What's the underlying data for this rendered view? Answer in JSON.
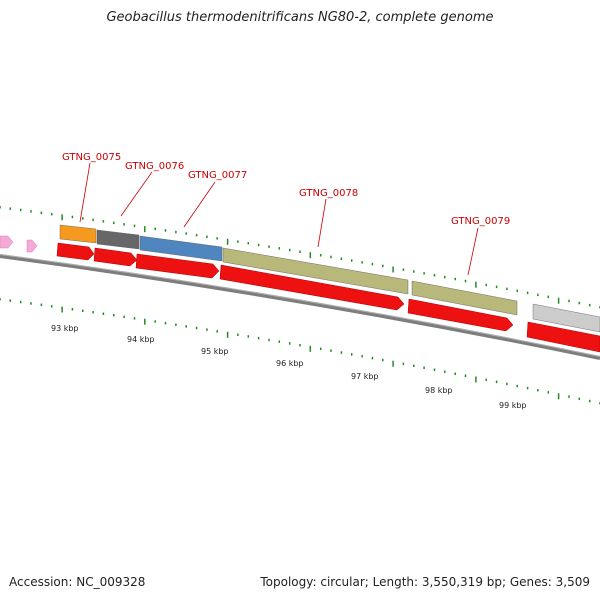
{
  "title": "Geobacillus thermodenitrificans NG80-2, complete genome",
  "footer": {
    "accession": "Accession: NC_009328",
    "summary": "Topology: circular; Length: 3,550,319 bp; Genes: 3,509"
  },
  "colors": {
    "backbone": "#7a7a7a",
    "cds_strand": "#ee1111",
    "gene_label": "#cc0000",
    "tick": "#228b22",
    "pink_feature": "#f4a9d6"
  },
  "genes": [
    {
      "name": "GTNG_0075",
      "color": "#f59a1f"
    },
    {
      "name": "GTNG_0076",
      "color": "#676767"
    },
    {
      "name": "GTNG_0077",
      "color": "#4f86bf"
    },
    {
      "name": "GTNG_0078",
      "color": "#b8b87a"
    },
    {
      "name": "GTNG_0079",
      "color": "#b8b87a"
    },
    {
      "name": "",
      "color": "#cccccc"
    }
  ],
  "scale_labels": [
    "93 kbp",
    "94 kbp",
    "95 kbp",
    "96 kbp",
    "97 kbp",
    "98 kbp",
    "99 kbp"
  ]
}
